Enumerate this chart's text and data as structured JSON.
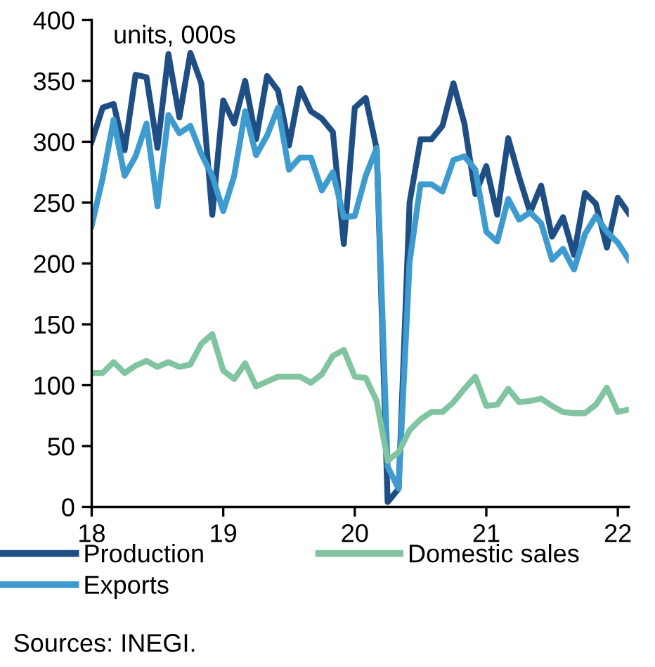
{
  "chart_data": {
    "type": "line",
    "x": [
      "2018-01",
      "2018-02",
      "2018-03",
      "2018-04",
      "2018-05",
      "2018-06",
      "2018-07",
      "2018-08",
      "2018-09",
      "2018-10",
      "2018-11",
      "2018-12",
      "2019-01",
      "2019-02",
      "2019-03",
      "2019-04",
      "2019-05",
      "2019-06",
      "2019-07",
      "2019-08",
      "2019-09",
      "2019-10",
      "2019-11",
      "2019-12",
      "2020-01",
      "2020-02",
      "2020-03",
      "2020-04",
      "2020-05",
      "2020-06",
      "2020-07",
      "2020-08",
      "2020-09",
      "2020-10",
      "2020-11",
      "2020-12",
      "2021-01",
      "2021-02",
      "2021-03",
      "2021-04",
      "2021-05",
      "2021-06",
      "2021-07",
      "2021-08",
      "2021-09",
      "2021-10",
      "2021-11",
      "2021-12",
      "2022-01",
      "2022-02"
    ],
    "series": [
      {
        "name": "Production",
        "color": "#1f4e85",
        "values": [
          300,
          328,
          331,
          293,
          355,
          353,
          295,
          372,
          320,
          373,
          348,
          240,
          334,
          315,
          350,
          302,
          354,
          342,
          297,
          344,
          325,
          319,
          308,
          216,
          328,
          336,
          294,
          4,
          15,
          250,
          302,
          302,
          313,
          348,
          315,
          257,
          280,
          240,
          303,
          271,
          242,
          264,
          222,
          238,
          207,
          258,
          249,
          213,
          254,
          241
        ]
      },
      {
        "name": "Exports",
        "color": "#3d9bd0",
        "values": [
          231,
          270,
          318,
          272,
          288,
          315,
          247,
          322,
          307,
          313,
          290,
          272,
          243,
          272,
          325,
          289,
          305,
          328,
          277,
          287,
          287,
          260,
          275,
          238,
          239,
          272,
          295,
          33,
          15,
          201,
          265,
          265,
          259,
          285,
          288,
          277,
          226,
          218,
          253,
          236,
          242,
          233,
          203,
          212,
          195,
          224,
          239,
          226,
          217,
          203
        ]
      },
      {
        "name": "Domestic sales",
        "color": "#80c4a0",
        "values": [
          110,
          110,
          119,
          110,
          116,
          120,
          115,
          119,
          115,
          117,
          134,
          142,
          112,
          105,
          118,
          99,
          103,
          107,
          107,
          107,
          102,
          109,
          124,
          129,
          107,
          106,
          87,
          38,
          45,
          63,
          72,
          78,
          78,
          86,
          97,
          107,
          83,
          84,
          97,
          86,
          87,
          89,
          83,
          78,
          77,
          77,
          84,
          98,
          78,
          80
        ]
      }
    ],
    "xlim": [
      "2018-01",
      "2022-02"
    ],
    "xticks": [
      {
        "value": "2018-01",
        "label": "18"
      },
      {
        "value": "2019-01",
        "label": "19"
      },
      {
        "value": "2020-01",
        "label": "20"
      },
      {
        "value": "2021-01",
        "label": "21"
      },
      {
        "value": "2022-01",
        "label": "22"
      }
    ],
    "ylim": [
      0,
      400
    ],
    "yticks": [
      0,
      50,
      100,
      150,
      200,
      250,
      300,
      350,
      400
    ],
    "grid": false,
    "legend": "bottom",
    "marker": "none",
    "line_style": "solid",
    "annotations": [
      "units, 000s",
      "Sources: INEGI."
    ]
  }
}
